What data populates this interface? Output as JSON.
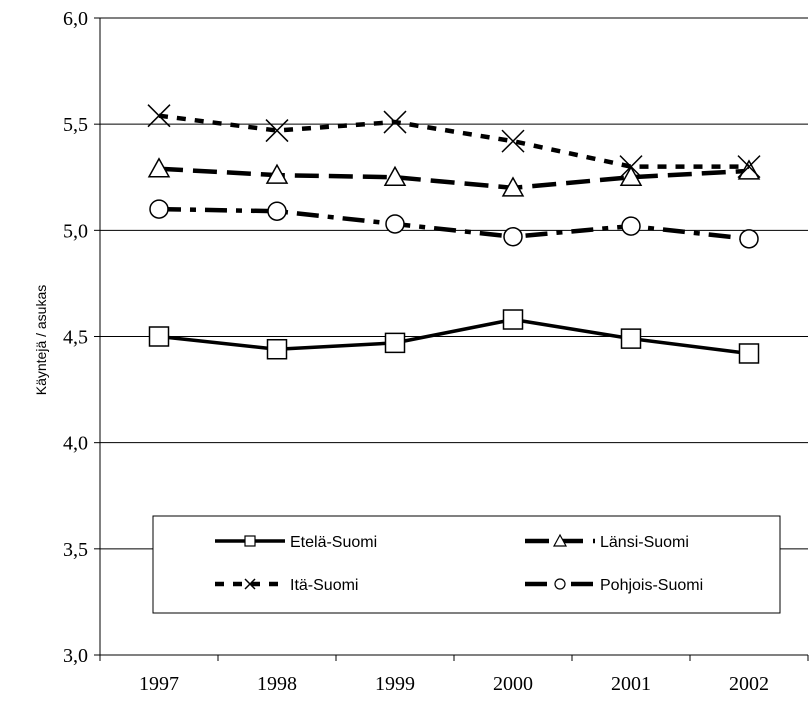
{
  "chart_data": {
    "type": "line",
    "title": "",
    "xlabel": "",
    "ylabel": "Käyntejä / asukas",
    "categories": [
      "1997",
      "1998",
      "1999",
      "2000",
      "2001",
      "2002"
    ],
    "ylim": [
      3.0,
      6.0
    ],
    "yticks": [
      3.0,
      3.5,
      4.0,
      4.5,
      5.0,
      5.5,
      6.0
    ],
    "ytick_labels": [
      "3,0",
      "3,5",
      "4,0",
      "4,5",
      "5,0",
      "5,5",
      "6,0"
    ],
    "grid": "horizontal",
    "legend_position": "bottom",
    "series": [
      {
        "name": "Etelä-Suomi",
        "values": [
          4.5,
          4.44,
          4.47,
          4.58,
          4.49,
          4.42
        ],
        "marker": "square",
        "line": "solid"
      },
      {
        "name": "Länsi-Suomi",
        "values": [
          5.29,
          5.26,
          5.25,
          5.2,
          5.25,
          5.28
        ],
        "marker": "triangle",
        "line": "long-dash"
      },
      {
        "name": "Itä-Suomi",
        "values": [
          5.54,
          5.47,
          5.51,
          5.42,
          5.3,
          5.3
        ],
        "marker": "x",
        "line": "dotted"
      },
      {
        "name": "Pohjois-Suomi",
        "values": [
          5.1,
          5.09,
          5.03,
          4.97,
          5.02,
          4.96
        ],
        "marker": "circle",
        "line": "dash-dot"
      }
    ]
  }
}
